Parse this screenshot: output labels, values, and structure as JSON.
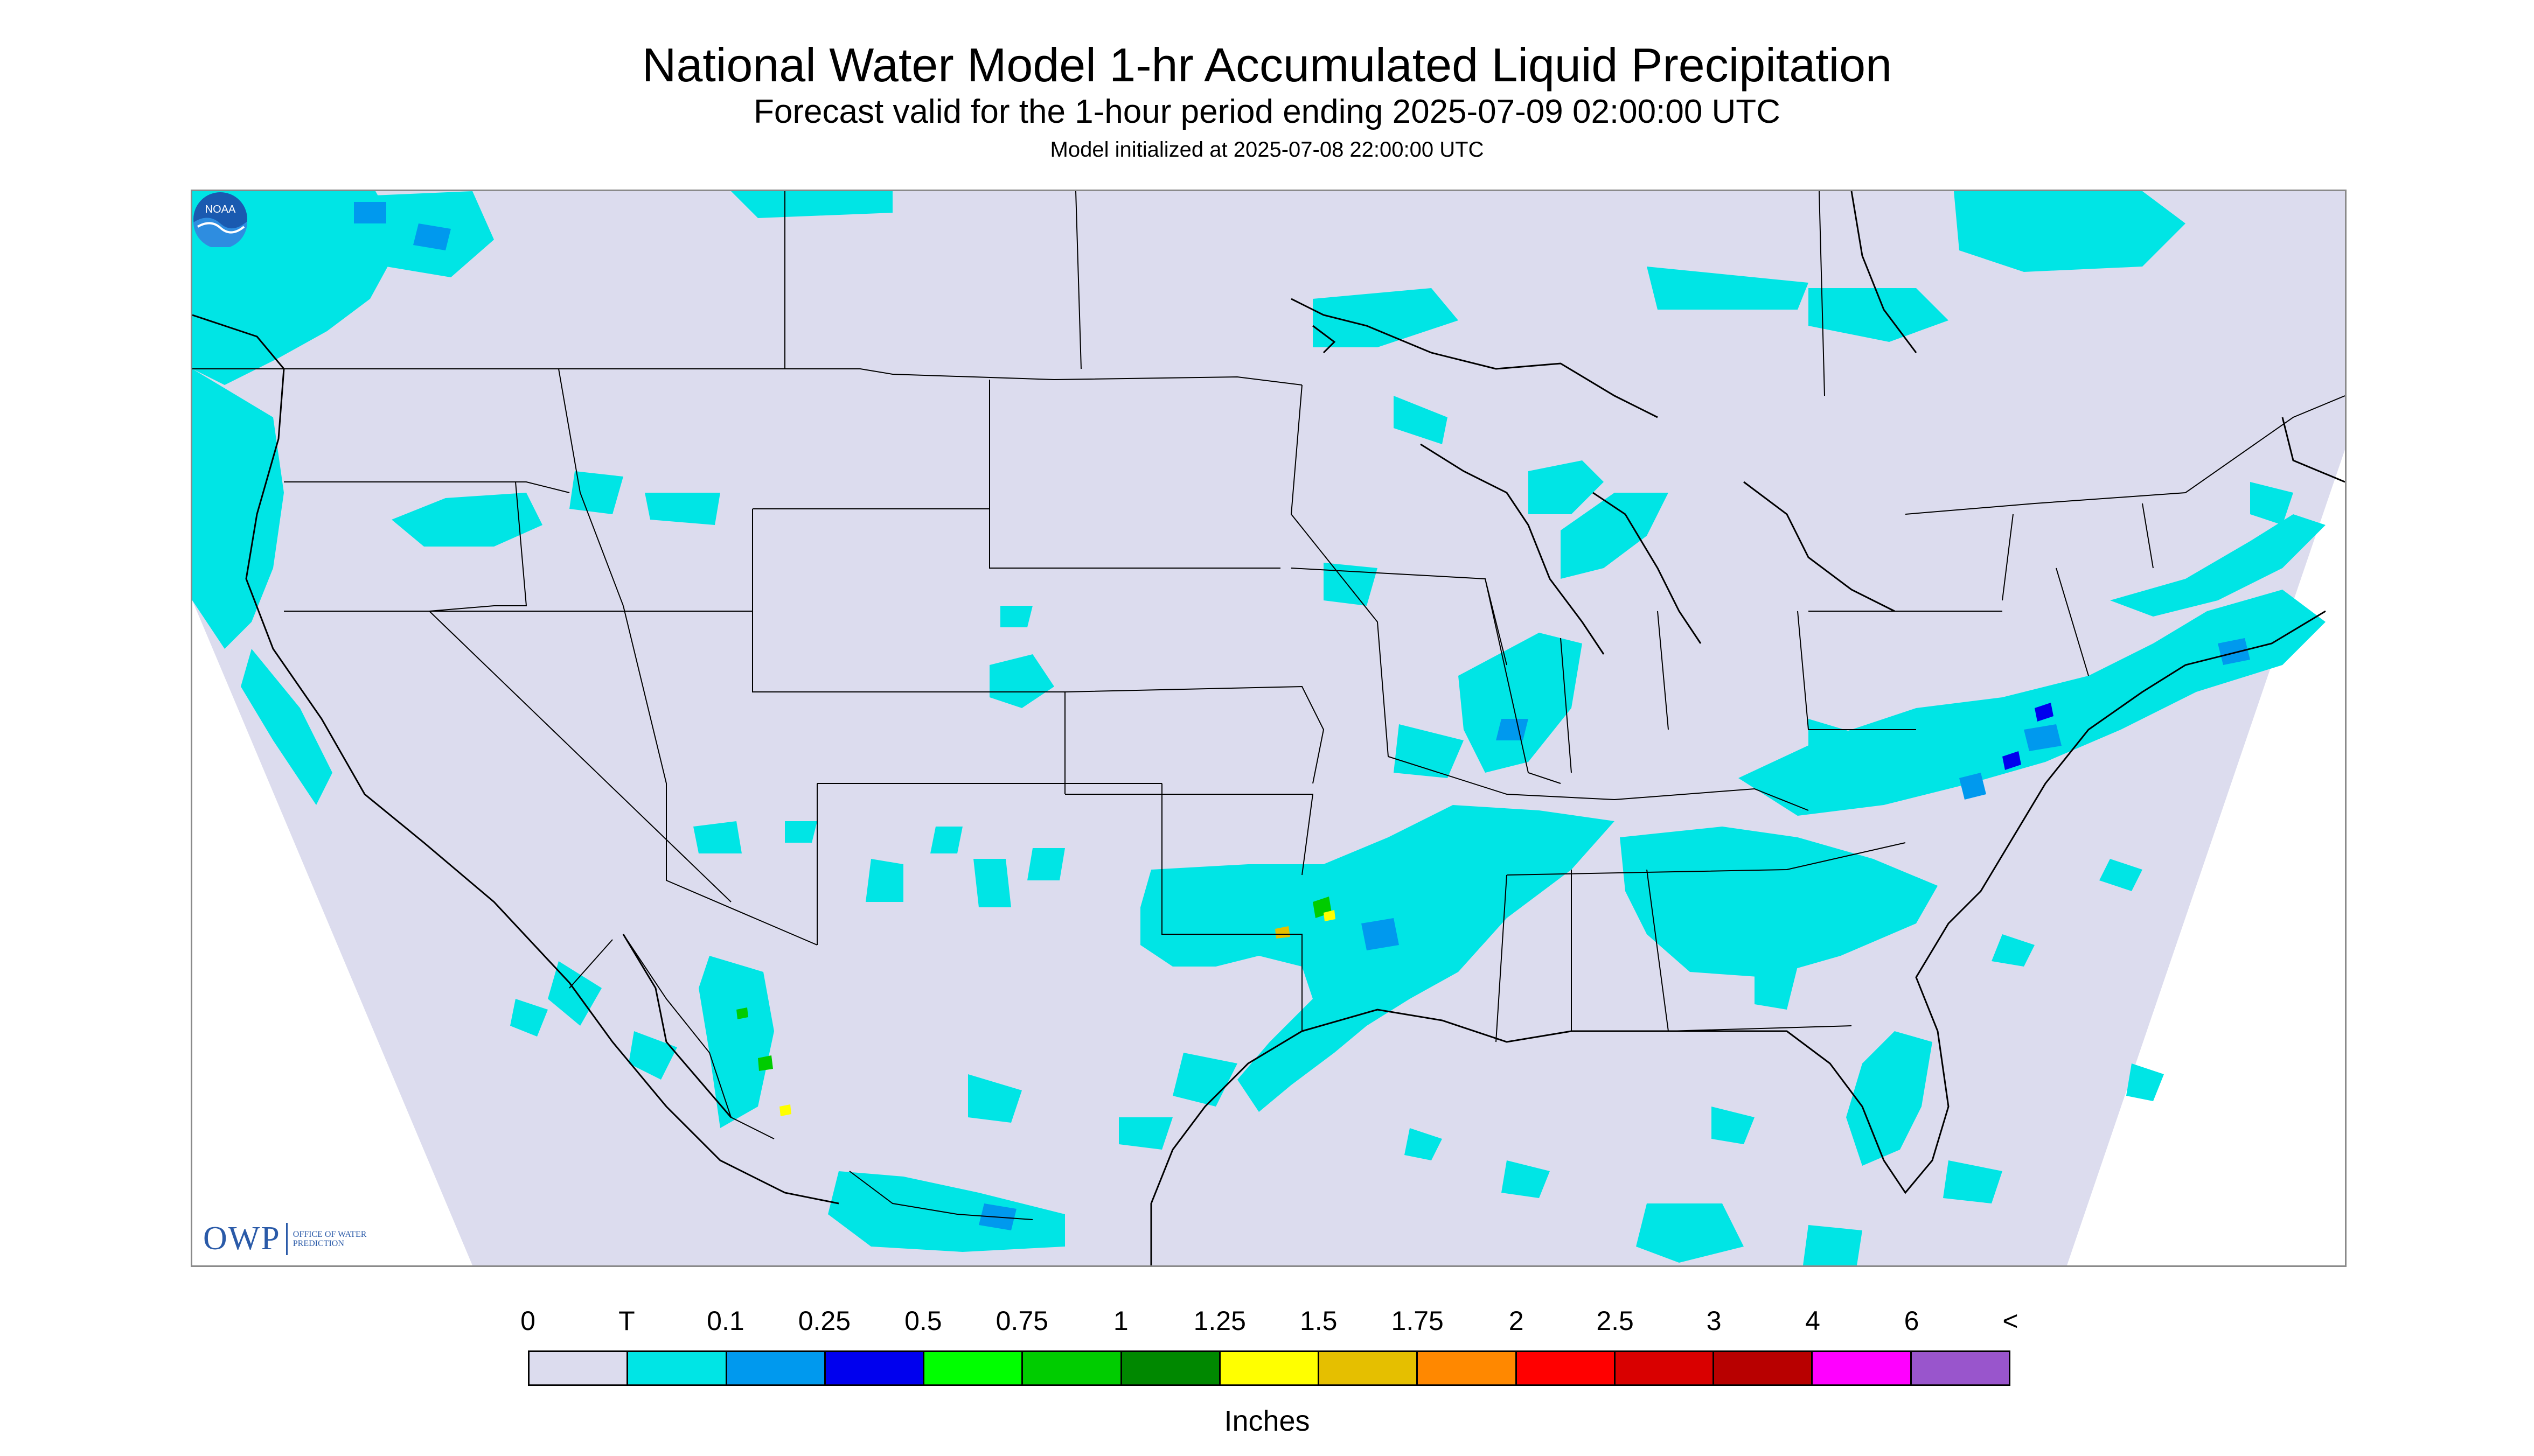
{
  "header": {
    "title": "National Water Model 1-hr Accumulated Liquid Precipitation",
    "subtitle": "Forecast valid for the 1-hour period ending 2025-07-09 02:00:00 UTC",
    "init": "Model initialized at 2025-07-08 22:00:00 UTC"
  },
  "map": {
    "background_color": "#dcdcee",
    "outside_color": "#ffffff",
    "boundary_color": "#000000",
    "logos": {
      "owp_letters": "OWP",
      "owp_text": "OFFICE OF WATER PREDICTION",
      "noaa_text": "NOAA"
    }
  },
  "legend": {
    "labels": [
      "0",
      "T",
      "0.1",
      "0.25",
      "0.5",
      "0.75",
      "1",
      "1.25",
      "1.5",
      "1.75",
      "2",
      "2.5",
      "3",
      "4",
      "6",
      "<"
    ],
    "colors": [
      "#dcdcee",
      "#00e5e5",
      "#0099ee",
      "#0000ee",
      "#00ff00",
      "#00cc00",
      "#008800",
      "#ffff00",
      "#e5bf00",
      "#ff8800",
      "#ff0000",
      "#d90000",
      "#b80000",
      "#ff00ff",
      "#9955cc"
    ],
    "units": "Inches"
  }
}
